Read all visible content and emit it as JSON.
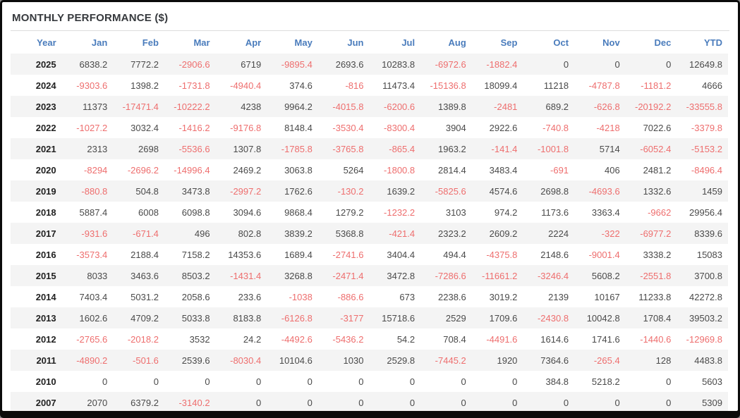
{
  "title": "MONTHLY PERFORMANCE ($)",
  "colors": {
    "header_blue": "#4a7cbc",
    "negative_red": "#ee6e6e",
    "value_dark": "#4a4a4a",
    "year_dark": "#222222",
    "row_stripe": "#f4f4f4",
    "title_color": "#36393d",
    "frame_black": "#0b0b0b"
  },
  "chart_data": {
    "type": "table",
    "title": "MONTHLY PERFORMANCE ($)",
    "columns": [
      "Year",
      "Jan",
      "Feb",
      "Mar",
      "Apr",
      "May",
      "Jun",
      "Jul",
      "Aug",
      "Sep",
      "Oct",
      "Nov",
      "Dec",
      "YTD"
    ],
    "rows": [
      {
        "year": "2025",
        "values": [
          "6838.2",
          "7772.2",
          "-2906.6",
          "6719",
          "-9895.4",
          "2693.6",
          "10283.8",
          "-6972.6",
          "-1882.4",
          "0",
          "0",
          "0",
          "12649.8"
        ]
      },
      {
        "year": "2024",
        "values": [
          "-9303.6",
          "1398.2",
          "-1731.8",
          "-4940.4",
          "374.6",
          "-816",
          "11473.4",
          "-15136.8",
          "18099.4",
          "11218",
          "-4787.8",
          "-1181.2",
          "4666"
        ]
      },
      {
        "year": "2023",
        "values": [
          "11373",
          "-17471.4",
          "-10222.2",
          "4238",
          "9964.2",
          "-4015.8",
          "-6200.6",
          "1389.8",
          "-2481",
          "689.2",
          "-626.8",
          "-20192.2",
          "-33555.8"
        ]
      },
      {
        "year": "2022",
        "values": [
          "-1027.2",
          "3032.4",
          "-1416.2",
          "-9176.8",
          "8148.4",
          "-3530.4",
          "-8300.4",
          "3904",
          "2922.6",
          "-740.8",
          "-4218",
          "7022.6",
          "-3379.8"
        ]
      },
      {
        "year": "2021",
        "values": [
          "2313",
          "2698",
          "-5536.6",
          "1307.8",
          "-1785.8",
          "-3765.8",
          "-865.4",
          "1963.2",
          "-141.4",
          "-1001.8",
          "5714",
          "-6052.4",
          "-5153.2"
        ]
      },
      {
        "year": "2020",
        "values": [
          "-8294",
          "-2696.2",
          "-14996.4",
          "2469.2",
          "3063.8",
          "5264",
          "-1800.8",
          "2814.4",
          "3483.4",
          "-691",
          "406",
          "2481.2",
          "-8496.4"
        ]
      },
      {
        "year": "2019",
        "values": [
          "-880.8",
          "504.8",
          "3473.8",
          "-2997.2",
          "1762.6",
          "-130.2",
          "1639.2",
          "-5825.6",
          "4574.6",
          "2698.8",
          "-4693.6",
          "1332.6",
          "1459"
        ]
      },
      {
        "year": "2018",
        "values": [
          "5887.4",
          "6008",
          "6098.8",
          "3094.6",
          "9868.4",
          "1279.2",
          "-1232.2",
          "3103",
          "974.2",
          "1173.6",
          "3363.4",
          "-9662",
          "29956.4"
        ]
      },
      {
        "year": "2017",
        "values": [
          "-931.6",
          "-671.4",
          "496",
          "802.8",
          "3839.2",
          "5368.8",
          "-421.4",
          "2323.2",
          "2609.2",
          "2224",
          "-322",
          "-6977.2",
          "8339.6"
        ]
      },
      {
        "year": "2016",
        "values": [
          "-3573.4",
          "2188.4",
          "7158.2",
          "14353.6",
          "1689.4",
          "-2741.6",
          "3404.4",
          "494.4",
          "-4375.8",
          "2148.6",
          "-9001.4",
          "3338.2",
          "15083"
        ]
      },
      {
        "year": "2015",
        "values": [
          "8033",
          "3463.6",
          "8503.2",
          "-1431.4",
          "3268.8",
          "-2471.4",
          "3472.8",
          "-7286.6",
          "-11661.2",
          "-3246.4",
          "5608.2",
          "-2551.8",
          "3700.8"
        ]
      },
      {
        "year": "2014",
        "values": [
          "7403.4",
          "5031.2",
          "2058.6",
          "233.6",
          "-1038",
          "-886.6",
          "673",
          "2238.6",
          "3019.2",
          "2139",
          "10167",
          "11233.8",
          "42272.8"
        ]
      },
      {
        "year": "2013",
        "values": [
          "1602.6",
          "4709.2",
          "5033.8",
          "8183.8",
          "-6126.8",
          "-3177",
          "15718.6",
          "2529",
          "1709.6",
          "-2430.8",
          "10042.8",
          "1708.4",
          "39503.2"
        ]
      },
      {
        "year": "2012",
        "values": [
          "-2765.6",
          "-2018.2",
          "3532",
          "24.2",
          "-4492.6",
          "-5436.2",
          "54.2",
          "708.4",
          "-4491.6",
          "1614.6",
          "1741.6",
          "-1440.6",
          "-12969.8"
        ]
      },
      {
        "year": "2011",
        "values": [
          "-4890.2",
          "-501.6",
          "2539.6",
          "-8030.4",
          "10104.6",
          "1030",
          "2529.8",
          "-7445.2",
          "1920",
          "7364.6",
          "-265.4",
          "128",
          "4483.8"
        ]
      },
      {
        "year": "2010",
        "values": [
          "0",
          "0",
          "0",
          "0",
          "0",
          "0",
          "0",
          "0",
          "0",
          "384.8",
          "5218.2",
          "0",
          "5603"
        ]
      },
      {
        "year": "2007",
        "values": [
          "2070",
          "6379.2",
          "-3140.2",
          "0",
          "0",
          "0",
          "0",
          "0",
          "0",
          "0",
          "0",
          "0",
          "5309"
        ]
      }
    ]
  }
}
